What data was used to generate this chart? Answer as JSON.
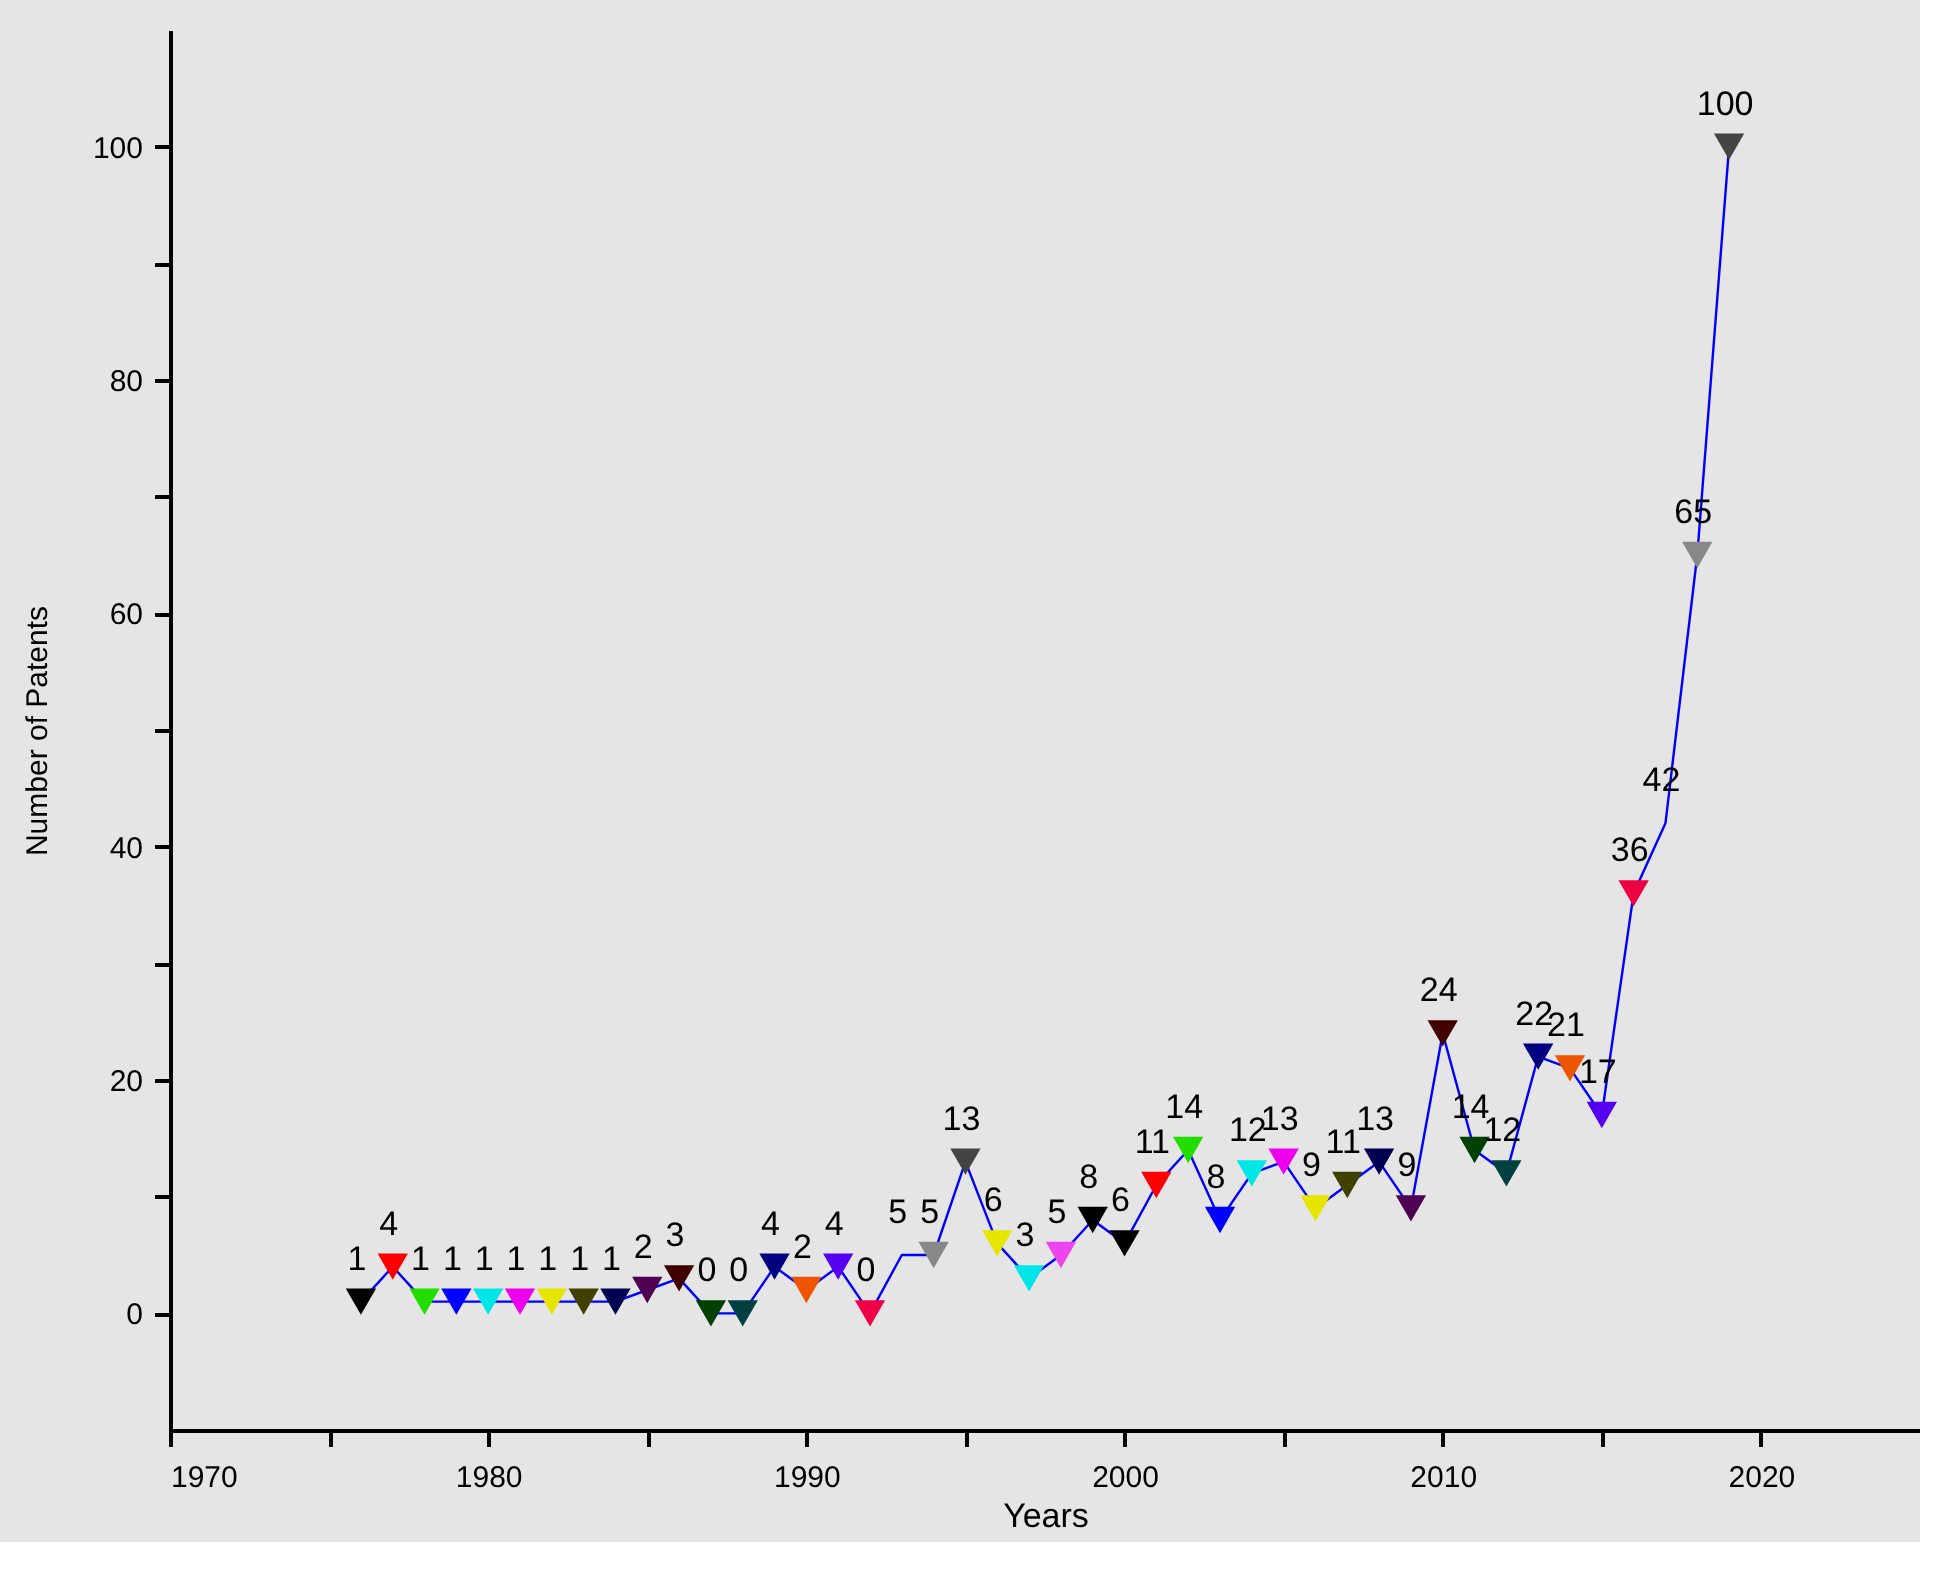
{
  "chart_data": {
    "type": "line",
    "xlabel": "Years",
    "ylabel": "Number of Patents",
    "x": [
      1976,
      1977,
      1978,
      1979,
      1980,
      1981,
      1982,
      1983,
      1984,
      1985,
      1986,
      1987,
      1988,
      1989,
      1990,
      1991,
      1992,
      1993,
      1994,
      1995,
      1996,
      1997,
      1998,
      1999,
      2000,
      2001,
      2002,
      2003,
      2004,
      2005,
      2006,
      2007,
      2008,
      2009,
      2010,
      2011,
      2012,
      2013,
      2014,
      2015,
      2016,
      2017,
      2018,
      2019
    ],
    "series": [
      {
        "color": "#0000ff",
        "values": [
          1,
          4,
          1,
          1,
          1,
          1,
          1,
          1,
          1,
          2,
          3,
          0,
          0,
          4,
          2,
          4,
          0,
          5,
          5,
          13,
          6,
          3,
          5,
          8,
          6,
          11,
          14,
          8,
          12,
          13,
          9,
          11,
          13,
          9,
          24,
          14,
          12,
          22,
          21,
          17,
          36,
          42,
          65,
          100
        ],
        "colors": [
          "#000000",
          "#ff0000",
          "#22dd00",
          "#0000ff",
          "#00e5e5",
          "#ee00ee",
          "#e5e500",
          "#404000",
          "#000050",
          "#500050",
          "#400000",
          "#004000",
          "#004040",
          "#000080",
          "#ee5500",
          "#5500ee",
          "#ee0044",
          null,
          "#888888",
          "#444444",
          "#e5e500",
          "#00e5e5",
          "#ee44ee",
          "#000000",
          "#000000",
          "#ff0000",
          "#22dd00",
          "#0000ff",
          "#00e5e5",
          "#ee00ee",
          "#e5e500",
          "#404000",
          "#000050",
          "#500050",
          "#400000",
          "#004000",
          "#004040",
          "#000080",
          "#ee5500",
          "#5500ee",
          "#ee0044",
          null,
          "#888888",
          "#444444"
        ]
      }
    ],
    "xlim": [
      1970,
      2025
    ],
    "xticks": [
      1970,
      {
        "value": 1975,
        "label": null
      },
      1980,
      {
        "value": 1985,
        "label": null
      },
      1990,
      {
        "value": 1995,
        "label": null
      },
      2000,
      {
        "value": 2005,
        "label": null
      },
      2010,
      {
        "value": 2015,
        "label": null
      },
      2020
    ],
    "ylim": [
      -10,
      110
    ],
    "yticks": [
      0,
      {
        "value": 10,
        "label": null
      },
      20,
      {
        "value": 30,
        "label": null
      },
      40,
      {
        "value": 50,
        "label": null
      },
      60,
      {
        "value": 70,
        "label": null
      },
      80,
      {
        "value": 90,
        "label": null
      },
      100
    ],
    "marker": "triangle",
    "line_style": "solid",
    "data_labels": true,
    "grid": false
  }
}
